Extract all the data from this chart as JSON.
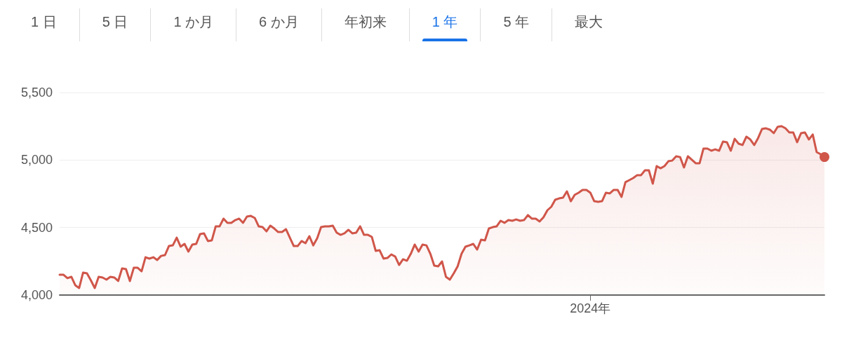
{
  "chart_data": {
    "type": "area",
    "annotations": [
      "1 日",
      "5 日",
      "1 か月",
      "6 か月",
      "年初来",
      "1 年",
      "5 年",
      "最大"
    ],
    "categories": [
      null,
      null,
      null,
      null,
      null,
      null,
      null,
      null,
      null,
      null,
      null,
      null,
      null,
      null,
      null,
      null,
      null,
      null,
      null,
      null,
      null,
      null,
      null,
      null,
      null,
      null,
      null,
      null,
      null,
      null,
      null,
      null,
      null,
      null,
      null,
      null,
      null,
      null,
      null,
      null,
      null,
      null,
      null,
      null,
      null,
      null,
      null,
      null,
      null,
      null,
      null,
      null,
      null,
      null,
      null,
      null,
      null,
      null,
      null,
      null,
      null,
      null,
      null,
      null,
      null,
      null,
      null,
      null,
      null,
      null,
      null,
      null,
      null,
      null,
      null,
      null,
      null,
      null,
      null,
      null,
      null,
      null,
      null,
      null,
      null,
      null,
      null,
      null,
      null,
      null,
      null,
      null,
      null,
      null,
      null,
      null,
      null,
      null,
      null,
      null,
      null,
      null,
      null,
      null,
      null,
      null,
      null,
      null,
      null,
      null,
      null,
      null,
      null,
      null,
      null,
      null,
      null,
      null,
      null,
      null,
      null,
      null,
      null,
      null,
      null,
      null,
      null,
      null,
      null,
      null,
      null,
      null,
      null,
      null,
      null,
      null,
      "2024年",
      null,
      null,
      null,
      null,
      null,
      null,
      null,
      null,
      null,
      null,
      null,
      null,
      null,
      null,
      null,
      null,
      null,
      null,
      null,
      null,
      null,
      null,
      null,
      null,
      null,
      null,
      null,
      null,
      null,
      null,
      null,
      null,
      null,
      null,
      null,
      null,
      null,
      null,
      null,
      null,
      null,
      null,
      null,
      null,
      null,
      null,
      null,
      null,
      null,
      null,
      null,
      null,
      null,
      null,
      null,
      null,
      null,
      null,
      null,
      null
    ],
    "series": [
      {
        "color": "#d0564a",
        "values": [
          4150,
          4150,
          4125,
          4135,
          4073,
          4052,
          4166,
          4161,
          4109,
          4052,
          4135,
          4130,
          4114,
          4135,
          4130,
          4104,
          4197,
          4192,
          4104,
          4202,
          4202,
          4176,
          4280,
          4270,
          4280,
          4260,
          4290,
          4296,
          4363,
          4368,
          4425,
          4358,
          4379,
          4322,
          4374,
          4379,
          4452,
          4457,
          4400,
          4405,
          4509,
          4509,
          4566,
          4535,
          4535,
          4555,
          4566,
          4535,
          4581,
          4586,
          4571,
          4509,
          4503,
          4472,
          4514,
          4493,
          4467,
          4467,
          4488,
          4425,
          4363,
          4363,
          4400,
          4384,
          4436,
          4368,
          4420,
          4503,
          4509,
          4509,
          4514,
          4462,
          4446,
          4457,
          4483,
          4457,
          4462,
          4509,
          4446,
          4446,
          4431,
          4327,
          4332,
          4270,
          4275,
          4301,
          4285,
          4223,
          4265,
          4254,
          4306,
          4374,
          4322,
          4374,
          4368,
          4306,
          4218,
          4213,
          4249,
          4135,
          4114,
          4161,
          4213,
          4306,
          4358,
          4368,
          4379,
          4337,
          4410,
          4405,
          4493,
          4503,
          4509,
          4550,
          4535,
          4555,
          4550,
          4560,
          4550,
          4555,
          4592,
          4566,
          4566,
          4545,
          4576,
          4628,
          4654,
          4706,
          4716,
          4721,
          4768,
          4695,
          4742,
          4758,
          4779,
          4779,
          4758,
          4695,
          4690,
          4695,
          4758,
          4753,
          4779,
          4779,
          4727,
          4836,
          4851,
          4867,
          4888,
          4888,
          4924,
          4924,
          4825,
          4955,
          4939,
          4955,
          4991,
          4996,
          5028,
          5022,
          4945,
          5028,
          5002,
          4976,
          4976,
          5085,
          5085,
          5069,
          5079,
          5069,
          5137,
          5132,
          5069,
          5157,
          5121,
          5111,
          5173,
          5152,
          5111,
          5163,
          5230,
          5235,
          5225,
          5199,
          5246,
          5251,
          5235,
          5204,
          5204,
          5132,
          5199,
          5204,
          5152,
          5189,
          5059,
          5043,
          5022
        ]
      }
    ],
    "ylim": [
      4000,
      5500
    ],
    "yticks": [
      {
        "value": 4000,
        "label": "4,000"
      },
      {
        "value": 4500,
        "label": "4,500"
      },
      {
        "value": 5000,
        "label": "5,000"
      },
      {
        "value": 5500,
        "label": "5,500"
      }
    ],
    "grid": "y",
    "line_style": "solid"
  }
}
